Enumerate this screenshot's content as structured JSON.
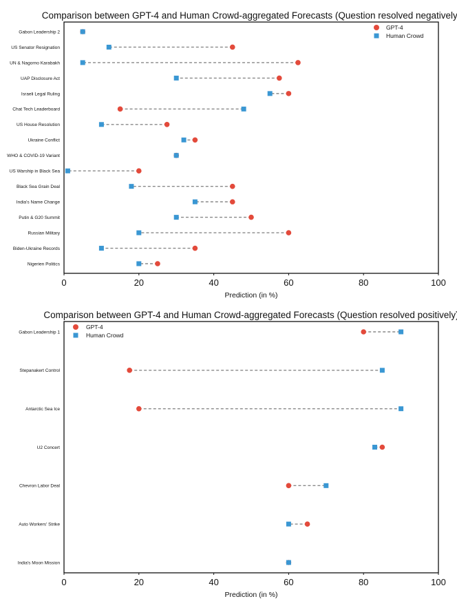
{
  "colors": {
    "gpt4": "#e34a3b",
    "human": "#3a97d3",
    "dash": "#888888",
    "frame": "#111111"
  },
  "chart_data": [
    {
      "type": "scatter",
      "title": "Comparison between GPT-4 and Human Crowd-aggregated Forecasts (Question resolved negatively)",
      "xlabel": "Prediction (in %)",
      "ylabel": "",
      "xlim": [
        0,
        100
      ],
      "xticks": [
        "0",
        "20",
        "40",
        "60",
        "80",
        "100"
      ],
      "legend": {
        "position": "top-right",
        "entries": [
          "GPT-4",
          "Human Crowd"
        ]
      },
      "categories": [
        "Gabon Leadership 2",
        "US Senator Resignation",
        "UN & Nagorno Karabakh",
        "UAP Disclosure Act",
        "Israeli Legal Ruling",
        "Chat Tech Leaderboard",
        "US House Resolution",
        "Ukraine Conflict",
        "WHO & COVID-19 Variant",
        "US Warship in Black Sea",
        "Black Sea Grain Deal",
        "India's Name Change",
        "Putin & G20 Summit",
        "Russian Military",
        "Biden-Ukraine Records",
        "Nigerien Politics"
      ],
      "series": [
        {
          "name": "GPT-4",
          "values": [
            5,
            45,
            62.5,
            57.5,
            60,
            15,
            27.5,
            35,
            30,
            20,
            45,
            45,
            50,
            60,
            35,
            25
          ]
        },
        {
          "name": "Human Crowd",
          "values": [
            5,
            12,
            5,
            30,
            55,
            48,
            10,
            32,
            30,
            1,
            18,
            35,
            30,
            20,
            10,
            20
          ]
        }
      ]
    },
    {
      "type": "scatter",
      "title": "Comparison between GPT-4 and Human Crowd-aggregated Forecasts (Question resolved positively)",
      "xlabel": "Prediction (in %)",
      "ylabel": "",
      "xlim": [
        0,
        100
      ],
      "xticks": [
        "0",
        "20",
        "40",
        "60",
        "80",
        "100"
      ],
      "legend": {
        "position": "top-left",
        "entries": [
          "GPT-4",
          "Human Crowd"
        ]
      },
      "categories": [
        "Gabon Leadership 1",
        "Stepanakert Control",
        "Antarctic Sea Ice",
        "U2 Concert",
        "Chevron Labor Deal",
        "Auto Workers' Strike",
        "India's Moon Mission"
      ],
      "series": [
        {
          "name": "GPT-4",
          "values": [
            80,
            17.5,
            20,
            85,
            60,
            65,
            60
          ]
        },
        {
          "name": "Human Crowd",
          "values": [
            90,
            85,
            90,
            83,
            70,
            60,
            60
          ]
        }
      ]
    }
  ]
}
